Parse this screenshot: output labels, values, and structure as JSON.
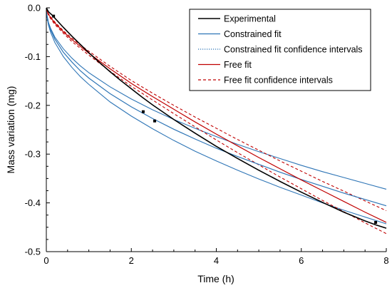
{
  "chart_data": {
    "type": "line",
    "title": "",
    "xlabel": "Time (h)",
    "ylabel": "Mass variation (mg)",
    "xlim": [
      0,
      8
    ],
    "ylim": [
      -0.5,
      0.0
    ],
    "x_ticks": [
      0,
      2,
      4,
      6,
      8
    ],
    "y_ticks": [
      0.0,
      -0.1,
      -0.2,
      -0.3,
      -0.4,
      -0.5
    ],
    "x_tick_labels": [
      "0",
      "2",
      "4",
      "6",
      "8"
    ],
    "y_tick_labels": [
      "0.0",
      "-0.1",
      "-0.2",
      "-0.3",
      "-0.4",
      "-0.5"
    ],
    "grid": false,
    "legend_position": "top-right",
    "series": [
      {
        "name": "Experimental",
        "color": "#000000",
        "style": "solid",
        "x": [
          0,
          0.05,
          0.1,
          0.15,
          0.2,
          0.4,
          0.6,
          0.8,
          1.0,
          1.25,
          1.5,
          1.75,
          2.0,
          2.25,
          2.5,
          2.75,
          3.0,
          3.5,
          4.0,
          4.5,
          5.0,
          5.5,
          6.0,
          6.5,
          7.0,
          7.5,
          7.75,
          8.0
        ],
        "y": [
          0,
          -0.008,
          -0.012,
          -0.016,
          -0.021,
          -0.04,
          -0.058,
          -0.075,
          -0.092,
          -0.112,
          -0.131,
          -0.149,
          -0.166,
          -0.183,
          -0.199,
          -0.214,
          -0.229,
          -0.257,
          -0.284,
          -0.309,
          -0.333,
          -0.356,
          -0.378,
          -0.399,
          -0.419,
          -0.437,
          -0.445,
          -0.452
        ]
      },
      {
        "name": "Constrained fit",
        "color": "#2e75b6",
        "style": "solid",
        "x": [
          0,
          0.01,
          0.05,
          0.1,
          0.2,
          0.4,
          0.6,
          0.8,
          1.0,
          1.5,
          2.0,
          2.5,
          3.0,
          3.5,
          4.0,
          4.5,
          5.0,
          5.5,
          6.0,
          6.5,
          7.0,
          7.5,
          8.0
        ],
        "y": [
          0,
          -0.014,
          -0.032,
          -0.045,
          -0.064,
          -0.091,
          -0.111,
          -0.129,
          -0.144,
          -0.176,
          -0.203,
          -0.227,
          -0.249,
          -0.269,
          -0.288,
          -0.305,
          -0.321,
          -0.337,
          -0.352,
          -0.366,
          -0.38,
          -0.393,
          -0.406
        ]
      },
      {
        "name": "Constrained fit confidence intervals",
        "color": "#2e75b6",
        "style": "dotted",
        "x": [
          0,
          0.01,
          0.05,
          0.1,
          0.2,
          0.4,
          0.6,
          0.8,
          1.0,
          1.5,
          2.0,
          2.5,
          3.0,
          3.5,
          4.0,
          4.5,
          5.0,
          5.5,
          6.0,
          6.5,
          7.0,
          7.5,
          8.0
        ],
        "y": [
          0,
          -0.014,
          -0.032,
          -0.045,
          -0.064,
          -0.091,
          -0.111,
          -0.129,
          -0.144,
          -0.176,
          -0.203,
          -0.227,
          -0.249,
          -0.269,
          -0.288,
          -0.305,
          -0.321,
          -0.337,
          -0.352,
          -0.366,
          -0.38,
          -0.393,
          -0.406
        ]
      },
      {
        "name": "Free fit",
        "color": "#c00000",
        "style": "solid",
        "x": [
          0,
          0.01,
          0.05,
          0.1,
          0.2,
          0.4,
          0.6,
          0.8,
          1.0,
          1.5,
          2.0,
          2.5,
          3.0,
          3.5,
          4.0,
          4.5,
          5.0,
          5.5,
          6.0,
          6.5,
          7.0,
          7.5,
          8.0
        ],
        "y": [
          0,
          -0.005,
          -0.013,
          -0.02,
          -0.031,
          -0.049,
          -0.065,
          -0.079,
          -0.093,
          -0.125,
          -0.155,
          -0.182,
          -0.208,
          -0.234,
          -0.259,
          -0.283,
          -0.307,
          -0.33,
          -0.353,
          -0.375,
          -0.397,
          -0.419,
          -0.44
        ]
      },
      {
        "name": "Free fit confidence intervals",
        "color": "#c00000",
        "style": "dashed",
        "x": [
          0,
          0.01,
          0.05,
          0.1,
          0.2,
          0.4,
          0.6,
          0.8,
          1.0,
          1.5,
          2.0,
          2.5,
          3.0,
          3.5,
          4.0,
          4.5,
          5.0,
          5.5,
          6.0,
          6.5,
          7.0,
          7.5,
          8.0
        ],
        "y": [
          0,
          -0.005,
          -0.013,
          -0.02,
          -0.031,
          -0.049,
          -0.065,
          -0.079,
          -0.093,
          -0.125,
          -0.155,
          -0.182,
          -0.208,
          -0.234,
          -0.259,
          -0.283,
          -0.307,
          -0.33,
          -0.353,
          -0.375,
          -0.397,
          -0.419,
          -0.44
        ]
      }
    ],
    "band_lines": [
      {
        "of": "Constrained fit",
        "color": "#2e75b6",
        "style": "solid",
        "x": [
          0,
          0.01,
          0.05,
          0.1,
          0.2,
          0.4,
          0.6,
          0.8,
          1.0,
          1.5,
          2.0,
          2.5,
          3.0,
          3.5,
          4.0,
          4.5,
          5.0,
          5.5,
          6.0,
          6.5,
          7.0,
          7.5,
          8.0
        ],
        "y": [
          0,
          -0.013,
          -0.03,
          -0.042,
          -0.06,
          -0.084,
          -0.103,
          -0.119,
          -0.133,
          -0.162,
          -0.187,
          -0.209,
          -0.229,
          -0.247,
          -0.264,
          -0.28,
          -0.295,
          -0.309,
          -0.323,
          -0.336,
          -0.348,
          -0.36,
          -0.372
        ]
      },
      {
        "of": "Constrained fit",
        "color": "#2e75b6",
        "style": "solid",
        "x": [
          0,
          0.01,
          0.05,
          0.1,
          0.2,
          0.4,
          0.6,
          0.8,
          1.0,
          1.5,
          2.0,
          2.5,
          3.0,
          3.5,
          4.0,
          4.5,
          5.0,
          5.5,
          6.0,
          6.5,
          7.0,
          7.5,
          8.0
        ],
        "y": [
          0,
          -0.016,
          -0.035,
          -0.05,
          -0.071,
          -0.1,
          -0.122,
          -0.141,
          -0.157,
          -0.193,
          -0.222,
          -0.248,
          -0.272,
          -0.294,
          -0.314,
          -0.333,
          -0.351,
          -0.368,
          -0.384,
          -0.4,
          -0.415,
          -0.429,
          -0.443
        ]
      },
      {
        "of": "Free fit",
        "color": "#c00000",
        "style": "dashed",
        "x": [
          0,
          0.01,
          0.05,
          0.1,
          0.2,
          0.4,
          0.6,
          0.8,
          1.0,
          1.5,
          2.0,
          2.5,
          3.0,
          3.5,
          4.0,
          4.5,
          5.0,
          5.5,
          6.0,
          6.5,
          7.0,
          7.5,
          8.0
        ],
        "y": [
          0,
          -0.004,
          -0.012,
          -0.018,
          -0.029,
          -0.047,
          -0.062,
          -0.076,
          -0.089,
          -0.12,
          -0.149,
          -0.175,
          -0.2,
          -0.224,
          -0.247,
          -0.27,
          -0.292,
          -0.314,
          -0.335,
          -0.356,
          -0.376,
          -0.396,
          -0.416
        ]
      },
      {
        "of": "Free fit",
        "color": "#c00000",
        "style": "dashed",
        "x": [
          0,
          0.01,
          0.05,
          0.1,
          0.2,
          0.4,
          0.6,
          0.8,
          1.0,
          1.5,
          2.0,
          2.5,
          3.0,
          3.5,
          4.0,
          4.5,
          5.0,
          5.5,
          6.0,
          6.5,
          7.0,
          7.5,
          8.0
        ],
        "y": [
          0,
          -0.006,
          -0.015,
          -0.022,
          -0.034,
          -0.052,
          -0.069,
          -0.083,
          -0.097,
          -0.13,
          -0.161,
          -0.189,
          -0.217,
          -0.244,
          -0.271,
          -0.297,
          -0.322,
          -0.347,
          -0.371,
          -0.395,
          -0.418,
          -0.441,
          -0.463
        ]
      }
    ],
    "markers": [
      {
        "series": "Experimental",
        "x": 0.17,
        "y": -0.017
      },
      {
        "series": "Experimental",
        "x": 2.28,
        "y": -0.213
      },
      {
        "series": "Experimental",
        "x": 2.55,
        "y": -0.232
      },
      {
        "series": "Experimental",
        "x": 7.75,
        "y": -0.44
      }
    ]
  }
}
